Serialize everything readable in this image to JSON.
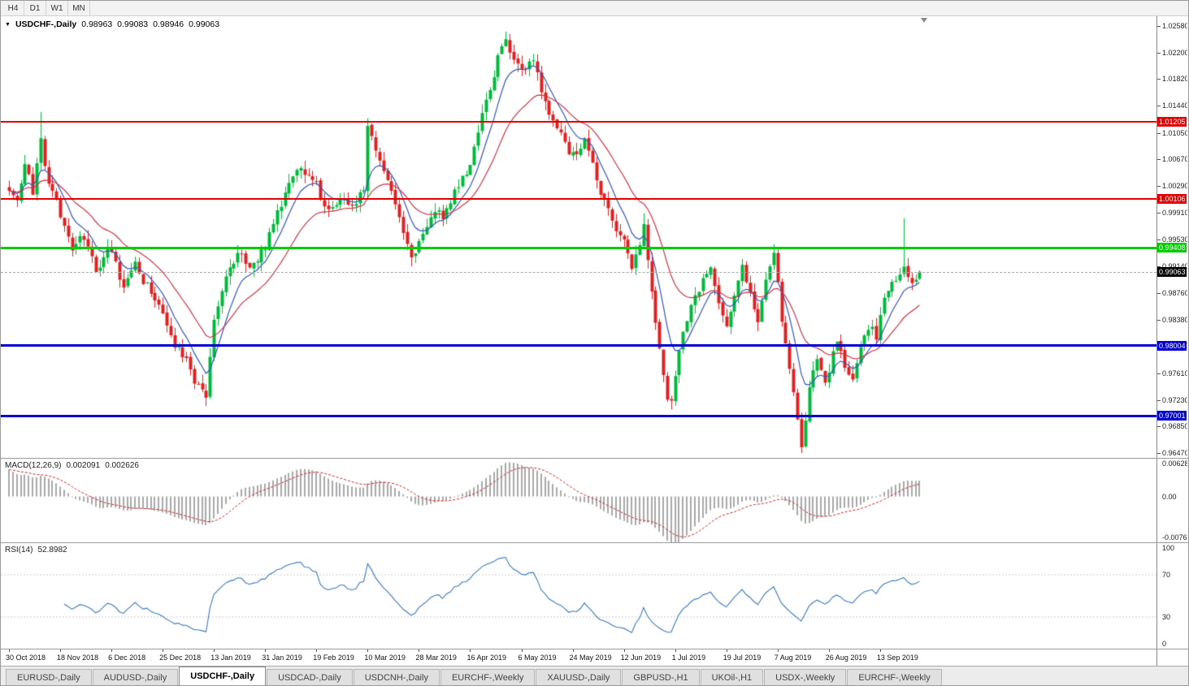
{
  "toolbar": {
    "timeframes": [
      "H4",
      "D1",
      "W1",
      "MN"
    ]
  },
  "chart": {
    "symbol": "USDCHF-,Daily",
    "ohlc": {
      "open": "0.98963",
      "high": "0.99083",
      "low": "0.98946",
      "close": "0.99063"
    }
  },
  "indicators": {
    "macd": {
      "name": "MACD(12,26,9)",
      "value_main": "0.002091",
      "value_signal": "0.002626",
      "axis": [
        {
          "label": "0.006286",
          "value": 0.006286
        },
        {
          "label": "0.00",
          "value": 0
        },
        {
          "label": "-0.00762",
          "value": -0.00762
        }
      ],
      "range": [
        -0.008,
        0.0066
      ],
      "histogram_color": "#a8a8a8",
      "signal_color": "#cc2222"
    },
    "rsi": {
      "name": "RSI(14)",
      "value": "52.8982",
      "axis": [
        {
          "label": "100",
          "value": 100
        },
        {
          "label": "70",
          "value": 70
        },
        {
          "label": "30",
          "value": 30
        },
        {
          "label": "0",
          "value": 0
        }
      ],
      "levels": [
        70,
        30
      ],
      "range": [
        0,
        100
      ],
      "line_color": "#3b78b8"
    }
  },
  "chart_data": {
    "type": "candlestick",
    "symbol": "USDCHF",
    "timeframe": "Daily",
    "price_range": [
      0.964,
      1.0272
    ],
    "y_ticks": [
      "1.02580",
      "1.02200",
      "1.01820",
      "1.01440",
      "1.01050",
      "1.00670",
      "1.00290",
      "0.99910",
      "0.99530",
      "0.99140",
      "0.98760",
      "0.98380",
      "0.98000",
      "0.97610",
      "0.97230",
      "0.96850",
      "0.96470"
    ],
    "levels": [
      {
        "label": "1.01205",
        "value": 1.01205,
        "color": "#e00000",
        "thickness": 2,
        "text_color": "#ffffff"
      },
      {
        "label": "1.00106",
        "value": 1.00106,
        "color": "#e00000",
        "thickness": 2,
        "text_color": "#ffffff"
      },
      {
        "label": "0.99408",
        "value": 0.99408,
        "color": "#00cc00",
        "thickness": 3,
        "text_color": "#ffffff"
      },
      {
        "label": "0.98004",
        "value": 0.98004,
        "color": "#0000d0",
        "thickness": 3,
        "text_color": "#ffffff"
      },
      {
        "label": "0.97001",
        "value": 0.97001,
        "color": "#0000d0",
        "thickness": 3,
        "text_color": "#ffffff"
      }
    ],
    "current_price": {
      "label": "0.99063",
      "value": 0.99063,
      "badge_bg": "#000000"
    },
    "x_labels": [
      "30 Oct 2018",
      "18 Nov 2018",
      "6 Dec 2018",
      "25 Dec 2018",
      "13 Jan 2019",
      "31 Jan 2019",
      "19 Feb 2019",
      "10 Mar 2019",
      "28 Mar 2019",
      "16 Apr 2019",
      "6 May 2019",
      "24 May 2019",
      "12 Jun 2019",
      "1 Jul 2019",
      "19 Jul 2019",
      "7 Aug 2019",
      "26 Aug 2019",
      "13 Sep 2019"
    ],
    "labels_every": 13,
    "candles": {
      "count": 232,
      "x0": 10,
      "spacing": 4.85,
      "body_width": 4,
      "seed": 7,
      "bull_color": "#00b93b",
      "bear_color": "#e02020",
      "waypoints": [
        [
          0,
          1.003
        ],
        [
          2,
          1.0005
        ],
        [
          4,
          1.006
        ],
        [
          6,
          1.002
        ],
        [
          8,
          1.009
        ],
        [
          10,
          1.004
        ],
        [
          13,
          0.999
        ],
        [
          16,
          0.993
        ],
        [
          19,
          0.996
        ],
        [
          22,
          0.9905
        ],
        [
          24,
          0.9935
        ],
        [
          26,
          0.993
        ],
        [
          29,
          0.988
        ],
        [
          32,
          0.992
        ],
        [
          35,
          0.9885
        ],
        [
          39,
          0.985
        ],
        [
          42,
          0.98
        ],
        [
          45,
          0.9775
        ],
        [
          48,
          0.974
        ],
        [
          50,
          0.973
        ],
        [
          52,
          0.983
        ],
        [
          55,
          0.99
        ],
        [
          58,
          0.9935
        ],
        [
          61,
          0.9905
        ],
        [
          65,
          0.9945
        ],
        [
          68,
          0.999
        ],
        [
          71,
          1.004
        ],
        [
          74,
          1.006
        ],
        [
          78,
          1.003
        ],
        [
          81,
          0.999
        ],
        [
          84,
          1.001
        ],
        [
          87,
          1.0
        ],
        [
          90,
          1.003
        ],
        [
          91,
          1.0115
        ],
        [
          94,
          1.007
        ],
        [
          97,
          1.002
        ],
        [
          100,
          0.996
        ],
        [
          102,
          0.9925
        ],
        [
          104,
          0.995
        ],
        [
          107,
          0.999
        ],
        [
          110,
          0.9985
        ],
        [
          113,
          1.002
        ],
        [
          117,
          1.006
        ],
        [
          120,
          1.013
        ],
        [
          123,
          1.018
        ],
        [
          124,
          1.0215
        ],
        [
          126,
          1.0238
        ],
        [
          128,
          1.0205
        ],
        [
          130,
          1.019
        ],
        [
          133,
          1.0205
        ],
        [
          136,
          1.015
        ],
        [
          139,
          1.011
        ],
        [
          143,
          1.007
        ],
        [
          146,
          1.01
        ],
        [
          149,
          1.004
        ],
        [
          152,
          0.999
        ],
        [
          156,
          0.995
        ],
        [
          158,
          0.9905
        ],
        [
          160,
          0.9945
        ],
        [
          161,
          0.9975
        ],
        [
          163,
          0.987
        ],
        [
          165,
          0.979
        ],
        [
          167,
          0.973
        ],
        [
          168,
          0.9715
        ],
        [
          169,
          0.976
        ],
        [
          172,
          0.984
        ],
        [
          175,
          0.988
        ],
        [
          178,
          0.991
        ],
        [
          180,
          0.986
        ],
        [
          182,
          0.983
        ],
        [
          184,
          0.988
        ],
        [
          186,
          0.992
        ],
        [
          188,
          0.987
        ],
        [
          190,
          0.983
        ],
        [
          192,
          0.989
        ],
        [
          194,
          0.9935
        ],
        [
          196,
          0.984
        ],
        [
          198,
          0.976
        ],
        [
          200,
          0.97
        ],
        [
          201,
          0.966
        ],
        [
          203,
          0.974
        ],
        [
          205,
          0.978
        ],
        [
          207,
          0.975
        ],
        [
          208,
          0.977
        ],
        [
          210,
          0.98
        ],
        [
          212,
          0.977
        ],
        [
          214,
          0.9745
        ],
        [
          216,
          0.98
        ],
        [
          218,
          0.983
        ],
        [
          220,
          0.981
        ],
        [
          221,
          0.985
        ],
        [
          223,
          0.988
        ],
        [
          225,
          0.99
        ],
        [
          227,
          0.9915
        ],
        [
          229,
          0.989
        ],
        [
          231,
          0.9906
        ]
      ],
      "spikes": [
        {
          "i": 8,
          "h": 1.0135
        },
        {
          "i": 50,
          "l": 0.9717
        },
        {
          "i": 91,
          "h": 1.0124
        },
        {
          "i": 126,
          "h": 1.025
        },
        {
          "i": 161,
          "h": 0.999
        },
        {
          "i": 201,
          "l": 0.9647
        },
        {
          "i": 227,
          "h": 0.9983
        }
      ]
    },
    "moving_averages": [
      {
        "period": 8,
        "color": "#3355bb"
      },
      {
        "period": 21,
        "color": "#cc3344"
      }
    ]
  },
  "tabs": [
    {
      "label": "EURUSD-,Daily",
      "active": false
    },
    {
      "label": "AUDUSD-,Daily",
      "active": false
    },
    {
      "label": "USDCHF-,Daily",
      "active": true
    },
    {
      "label": "USDCAD-,Daily",
      "active": false
    },
    {
      "label": "USDCNH-,Daily",
      "active": false
    },
    {
      "label": "EURCHF-,Weekly",
      "active": false
    },
    {
      "label": "XAUUSD-,Daily",
      "active": false
    },
    {
      "label": "GBPUSD-,H1",
      "active": false
    },
    {
      "label": "UKOil-,H1",
      "active": false
    },
    {
      "label": "USDX-,Weekly",
      "active": false
    },
    {
      "label": "EURCHF-,Weekly",
      "active": false
    }
  ]
}
